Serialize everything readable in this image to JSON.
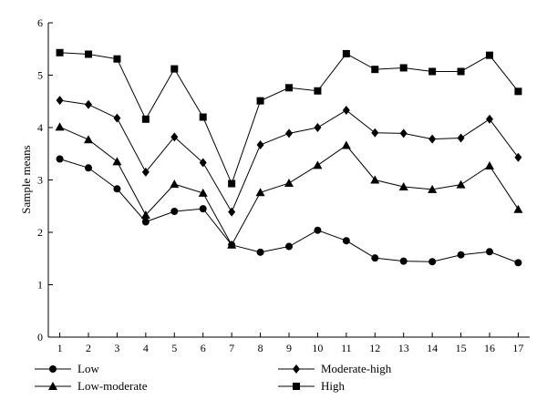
{
  "chart_data": {
    "type": "line",
    "title": "",
    "xlabel": "",
    "ylabel": "Sample means",
    "x": [
      1,
      2,
      3,
      4,
      5,
      6,
      7,
      8,
      9,
      10,
      11,
      12,
      13,
      14,
      15,
      16,
      17
    ],
    "xlim": [
      0.6,
      17.4
    ],
    "ylim": [
      0,
      6
    ],
    "yticks": [
      0,
      1,
      2,
      3,
      4,
      5,
      6
    ],
    "grid": false,
    "legend_position": "bottom",
    "series": [
      {
        "name": "Low",
        "marker": "circle",
        "values": [
          3.4,
          3.23,
          2.83,
          2.2,
          2.4,
          2.45,
          1.76,
          1.62,
          1.73,
          2.04,
          1.84,
          1.51,
          1.45,
          1.44,
          1.57,
          1.63,
          1.42
        ]
      },
      {
        "name": "Low-moderate",
        "marker": "triangle",
        "values": [
          4.01,
          3.77,
          3.35,
          2.33,
          2.92,
          2.75,
          1.76,
          2.76,
          2.94,
          3.28,
          3.66,
          3.0,
          2.87,
          2.82,
          2.91,
          3.27,
          2.44
        ]
      },
      {
        "name": "Moderate-high",
        "marker": "diamond",
        "values": [
          4.52,
          4.44,
          4.18,
          3.15,
          3.82,
          3.33,
          2.39,
          3.67,
          3.89,
          4.0,
          4.33,
          3.9,
          3.89,
          3.78,
          3.8,
          4.16,
          3.43
        ]
      },
      {
        "name": "High",
        "marker": "square",
        "values": [
          5.43,
          5.4,
          5.31,
          4.16,
          5.12,
          4.2,
          2.93,
          4.51,
          4.76,
          4.7,
          5.41,
          5.11,
          5.14,
          5.07,
          5.07,
          5.38,
          4.69
        ]
      }
    ]
  },
  "colors": {
    "line": "#000000",
    "marker": "#000000",
    "axis": "#000000"
  }
}
